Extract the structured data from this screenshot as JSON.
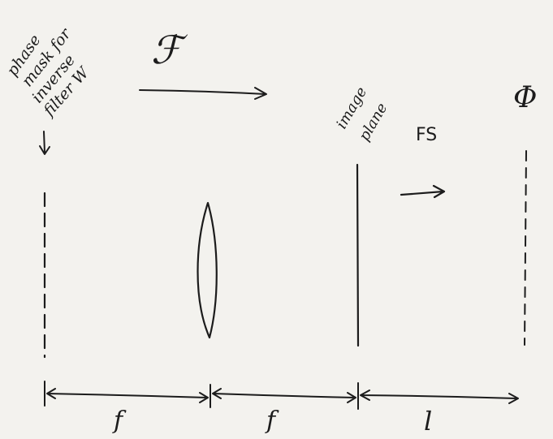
{
  "mask_label": {
    "line1": "phase",
    "line2": "mask for",
    "line3": "inverse",
    "line4": "filter W"
  },
  "transform_symbol": "ℱ",
  "image_plane_label": {
    "line1": "image",
    "line2": "plane"
  },
  "fs_label": "FS",
  "phi_symbol": "Φ",
  "dimension_labels": {
    "first": "f",
    "second": "f",
    "third": "l"
  }
}
